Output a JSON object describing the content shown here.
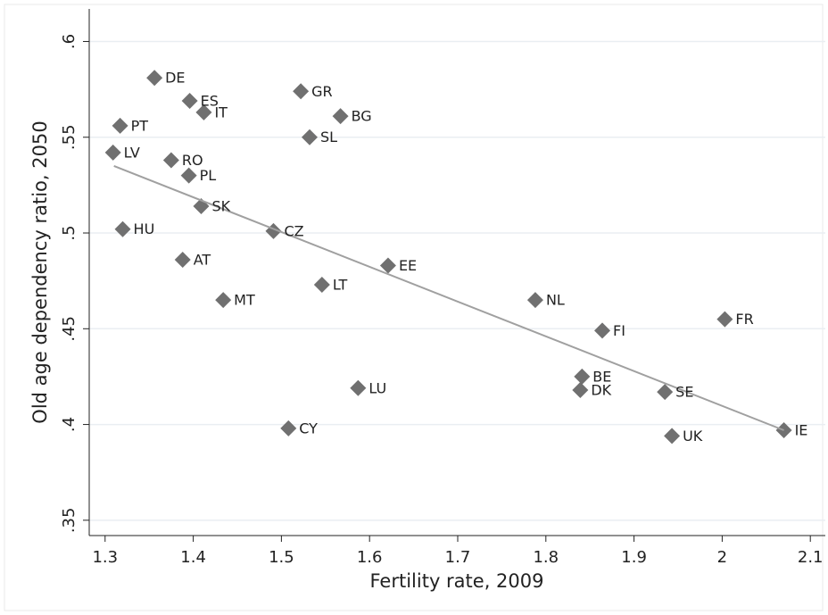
{
  "chart_data": {
    "type": "scatter",
    "x_label": "Fertility rate, 2009",
    "y_label": "Old age dependency ratio, 2050",
    "labels": [
      "DE",
      "ES",
      "IT",
      "PT",
      "GR",
      "BG",
      "SL",
      "LV",
      "RO",
      "PL",
      "SK",
      "HU",
      "CZ",
      "AT",
      "EE",
      "LT",
      "MT",
      "NL",
      "FR",
      "FI",
      "BE",
      "DK",
      "SE",
      "LU",
      "CY",
      "IE",
      "UK"
    ],
    "x": [
      1.356,
      1.396,
      1.412,
      1.317,
      1.522,
      1.567,
      1.532,
      1.309,
      1.375,
      1.395,
      1.409,
      1.32,
      1.491,
      1.388,
      1.621,
      1.546,
      1.434,
      1.788,
      2.003,
      1.864,
      1.841,
      1.839,
      1.935,
      1.587,
      1.508,
      2.07,
      1.943
    ],
    "values": [
      0.581,
      0.569,
      0.563,
      0.556,
      0.574,
      0.561,
      0.55,
      0.542,
      0.538,
      0.53,
      0.514,
      0.502,
      0.501,
      0.486,
      0.483,
      0.473,
      0.465,
      0.465,
      0.455,
      0.449,
      0.425,
      0.418,
      0.417,
      0.419,
      0.398,
      0.397,
      0.394
    ],
    "color": "#707070",
    "fit_line": {
      "x": [
        1.31,
        2.07
      ],
      "y": [
        0.535,
        0.397
      ],
      "color": "#a0a0a0"
    },
    "xlim": [
      1.282,
      2.117
    ],
    "ylim": [
      0.342,
      0.617
    ],
    "xticks": [
      1.3,
      1.4,
      1.5,
      1.6,
      1.7,
      1.8,
      1.9,
      2,
      2.1
    ],
    "yticks": [
      {
        "value": 0.35,
        "label": ".35"
      },
      {
        "value": 0.4,
        "label": ".4"
      },
      {
        "value": 0.45,
        "label": ".45"
      },
      {
        "value": 0.5,
        "label": ".5"
      },
      {
        "value": 0.55,
        "label": ".55"
      },
      {
        "value": 0.6,
        "label": ".6"
      }
    ],
    "grid": true
  }
}
